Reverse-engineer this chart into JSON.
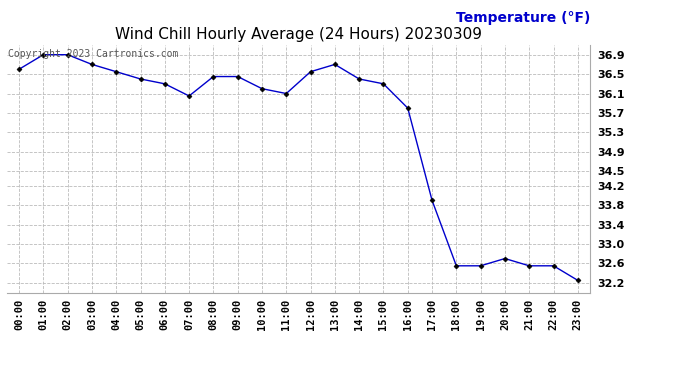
{
  "title": "Wind Chill Hourly Average (24 Hours) 20230309",
  "ylabel": "Temperature (°F)",
  "copyright_text": "Copyright 2023 Cartronics.com",
  "line_color": "#0000cc",
  "marker_color": "#000000",
  "background_color": "#ffffff",
  "grid_color": "#bbbbbb",
  "hours": [
    "00:00",
    "01:00",
    "02:00",
    "03:00",
    "04:00",
    "05:00",
    "06:00",
    "07:00",
    "08:00",
    "09:00",
    "10:00",
    "11:00",
    "12:00",
    "13:00",
    "14:00",
    "15:00",
    "16:00",
    "17:00",
    "18:00",
    "19:00",
    "20:00",
    "21:00",
    "22:00",
    "23:00"
  ],
  "values": [
    36.6,
    36.9,
    36.9,
    36.7,
    36.55,
    36.4,
    36.3,
    36.05,
    36.45,
    36.45,
    36.2,
    36.1,
    36.55,
    36.7,
    36.4,
    36.3,
    35.8,
    33.9,
    32.55,
    32.55,
    32.7,
    32.55,
    32.55,
    32.25
  ],
  "ylim_min": 32.0,
  "ylim_max": 37.1,
  "yticks": [
    36.9,
    36.5,
    36.1,
    35.7,
    35.3,
    34.9,
    34.5,
    34.2,
    33.8,
    33.4,
    33.0,
    32.6,
    32.2
  ],
  "title_fontsize": 11,
  "ylabel_fontsize": 10,
  "ylabel_color": "#0000cc",
  "copyright_fontsize": 7,
  "tick_fontsize": 7.5,
  "ytick_fontsize": 8
}
